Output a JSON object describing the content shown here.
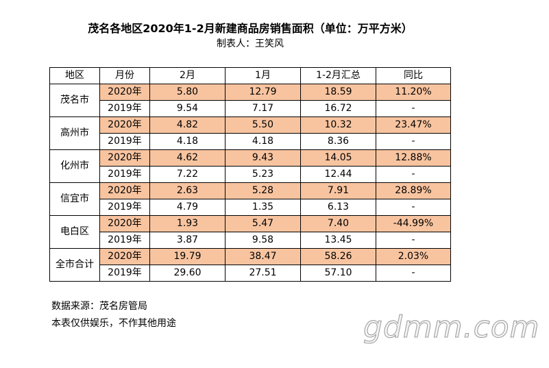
{
  "title": "茂名各地区2020年1-2月新建商品房销售面积（单位：万平方米）",
  "subtitle": "制表人：王笑风",
  "table": {
    "header": [
      "地区",
      "月份",
      "2月",
      "1月",
      "1-2月汇总",
      "同比"
    ],
    "groups": [
      {
        "region": "茂名市",
        "rows": [
          [
            "2020年",
            "5.80",
            "12.79",
            "18.59",
            "11.20%"
          ],
          [
            "2019年",
            "9.54",
            "7.17",
            "16.72",
            "-"
          ]
        ]
      },
      {
        "region": "高州市",
        "rows": [
          [
            "2020年",
            "4.82",
            "5.50",
            "10.32",
            "23.47%"
          ],
          [
            "2019年",
            "4.18",
            "4.18",
            "8.36",
            "-"
          ]
        ]
      },
      {
        "region": "化州市",
        "rows": [
          [
            "2020年",
            "4.62",
            "9.43",
            "14.05",
            "12.88%"
          ],
          [
            "2019年",
            "7.22",
            "5.23",
            "12.44",
            "-"
          ]
        ]
      },
      {
        "region": "信宜市",
        "rows": [
          [
            "2020年",
            "2.63",
            "5.28",
            "7.91",
            "28.89%"
          ],
          [
            "2019年",
            "4.79",
            "1.35",
            "6.13",
            "-"
          ]
        ]
      },
      {
        "region": "电白区",
        "rows": [
          [
            "2020年",
            "1.93",
            "5.47",
            "7.40",
            "-44.99%"
          ],
          [
            "2019年",
            "3.87",
            "9.58",
            "13.45",
            "-"
          ]
        ]
      },
      {
        "region": "全市合计",
        "rows": [
          [
            "2020年",
            "19.79",
            "38.47",
            "58.26",
            "2.03%"
          ],
          [
            "2019年",
            "29.60",
            "27.51",
            "57.10",
            "-"
          ]
        ]
      }
    ]
  },
  "notes": [
    "数据来源：茂名房管局",
    "本表仅供娱乐，不作其他用途"
  ],
  "watermark": "gdmm.com"
}
